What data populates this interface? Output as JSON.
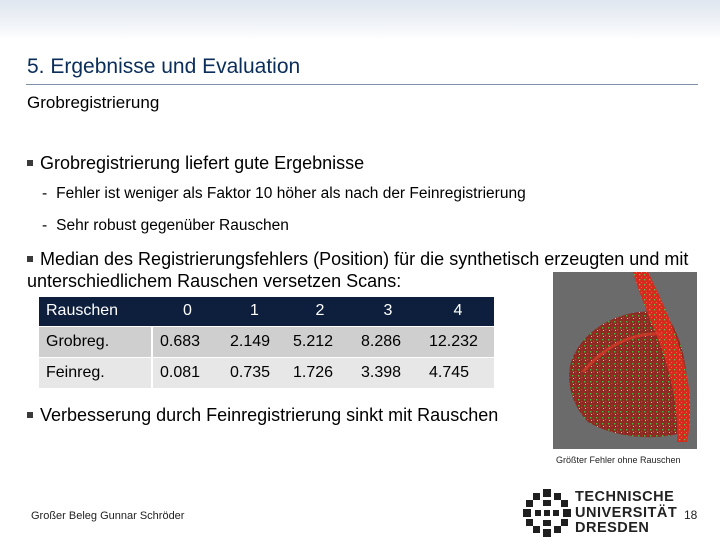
{
  "slide": {
    "title": "5. Ergebnisse und Evaluation",
    "subtitle": "Grobregistrierung",
    "bullets": [
      {
        "text": "Grobregistrierung liefert gute Ergebnisse",
        "subitems": [
          "Fehler ist weniger als Faktor 10 höher als nach der Feinregistrierung",
          "Sehr robust gegenüber Rauschen"
        ]
      },
      {
        "text": "Median des Registrierungsfehlers (Position) für die synthetisch erzeugten und mit unterschiedlichem Rauschen versetzen Scans:"
      },
      {
        "text": "Verbesserung durch Feinregistrierung sinkt mit Rauschen"
      }
    ],
    "table": {
      "header": [
        "Rauschen",
        "0",
        "1",
        "2",
        "3",
        "4"
      ],
      "rows": [
        [
          "Grobreg.",
          "0.683",
          "2.149",
          "5.212",
          "8.286",
          "12.232"
        ],
        [
          "Feinreg.",
          "0.081",
          "0.735",
          "1.726",
          "3.398",
          "4.745"
        ]
      ]
    },
    "image_caption": "Größter Fehler ohne Rauschen",
    "colors": {
      "title": "#0a2d5a",
      "table_header": "#0d1f3d",
      "row_dark": "#cfcfcf",
      "row_light": "#e7e7e7"
    }
  },
  "footer": {
    "author": "Großer Beleg Gunnar Schröder",
    "university_line1": "TECHNISCHE",
    "university_line2": "UNIVERSITÄT",
    "university_line3": "DRESDEN",
    "page_number": "18"
  }
}
